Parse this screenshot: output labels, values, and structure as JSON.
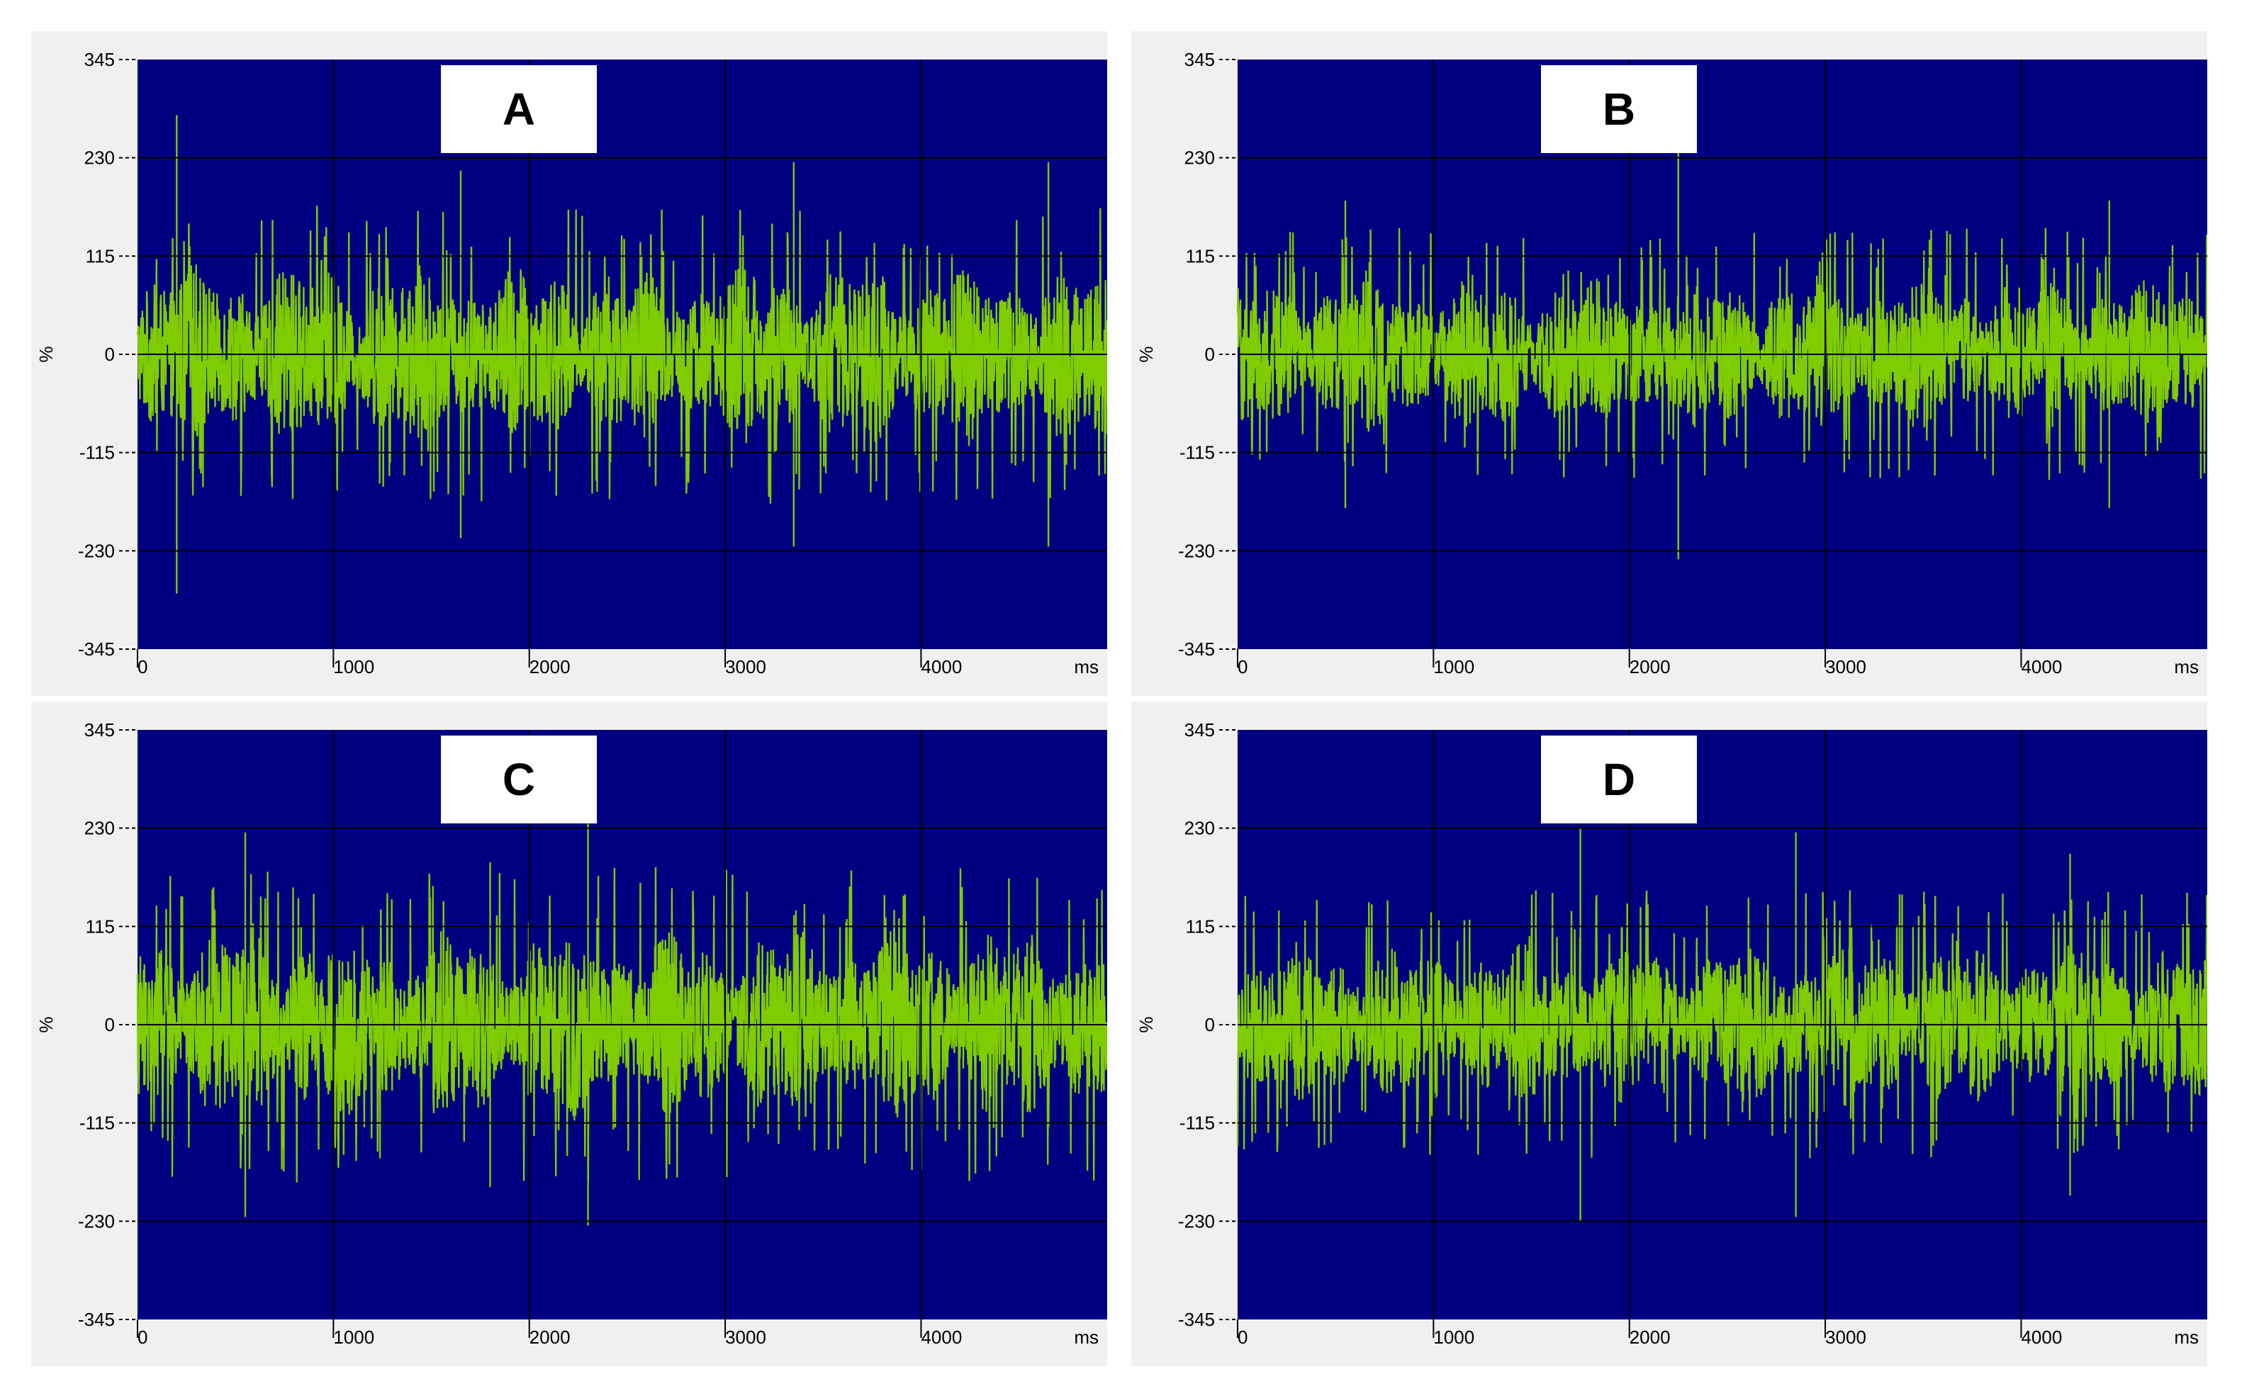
{
  "colors": {
    "plot_background": "#000080",
    "signal": "#7fcc00",
    "grid": "#000000",
    "panel_background": "#f0f0f0",
    "label_box": "#ffffff"
  },
  "chart_data": [
    {
      "type": "line",
      "panel_label": "A",
      "ylabel": "%",
      "xunit": "ms",
      "xlim": [
        0,
        4950
      ],
      "ylim": [
        -345,
        345
      ],
      "xticks": [
        0,
        1000,
        2000,
        3000,
        4000
      ],
      "xtick_labels": [
        "0",
        "1000",
        "2000",
        "3000",
        "4000"
      ],
      "yticks": [
        345,
        230,
        115,
        0,
        -115,
        -230,
        -345
      ],
      "ytick_labels": [
        "345",
        "230",
        "115",
        "0",
        "-115",
        "-230",
        "-345"
      ],
      "grid": true,
      "series": [
        {
          "signal": "noisy oscillation around 0",
          "x_range": [
            0,
            4950
          ],
          "typical_amplitude": 95,
          "approx_extrema": [
            {
              "x": 200,
              "y": 280
            },
            {
              "x": 200,
              "y": -280
            },
            {
              "x": 3350,
              "y": 225
            },
            {
              "x": 3350,
              "y": -225
            },
            {
              "x": 4650,
              "y": 225
            },
            {
              "x": 4650,
              "y": -225
            },
            {
              "x": 1650,
              "y": 215
            },
            {
              "x": 1650,
              "y": -215
            }
          ]
        }
      ]
    },
    {
      "type": "line",
      "panel_label": "B",
      "ylabel": "%",
      "xunit": "ms",
      "xlim": [
        0,
        4950
      ],
      "ylim": [
        -345,
        345
      ],
      "xticks": [
        0,
        1000,
        2000,
        3000,
        4000
      ],
      "xtick_labels": [
        "0",
        "1000",
        "2000",
        "3000",
        "4000"
      ],
      "yticks": [
        345,
        230,
        115,
        0,
        -115,
        -230,
        -345
      ],
      "ytick_labels": [
        "345",
        "230",
        "115",
        "0",
        "-115",
        "-230",
        "-345"
      ],
      "grid": true,
      "series": [
        {
          "signal": "noisy oscillation around 0",
          "x_range": [
            0,
            4950
          ],
          "typical_amplitude": 80,
          "approx_extrema": [
            {
              "x": 2250,
              "y": 240
            },
            {
              "x": 2250,
              "y": -240
            },
            {
              "x": 550,
              "y": 180
            },
            {
              "x": 550,
              "y": -180
            },
            {
              "x": 4450,
              "y": 180
            },
            {
              "x": 4450,
              "y": -180
            }
          ]
        }
      ]
    },
    {
      "type": "line",
      "panel_label": "C",
      "ylabel": "%",
      "xunit": "ms",
      "xlim": [
        0,
        4950
      ],
      "ylim": [
        -345,
        345
      ],
      "xticks": [
        0,
        1000,
        2000,
        3000,
        4000
      ],
      "xtick_labels": [
        "0",
        "1000",
        "2000",
        "3000",
        "4000"
      ],
      "yticks": [
        345,
        230,
        115,
        0,
        -115,
        -230,
        -345
      ],
      "ytick_labels": [
        "345",
        "230",
        "115",
        "0",
        "-115",
        "-230",
        "-345"
      ],
      "grid": true,
      "series": [
        {
          "signal": "noisy oscillation around 0",
          "x_range": [
            0,
            4950
          ],
          "typical_amplitude": 100,
          "approx_extrema": [
            {
              "x": 2300,
              "y": 235
            },
            {
              "x": 2300,
              "y": -235
            },
            {
              "x": 550,
              "y": 225
            },
            {
              "x": 550,
              "y": -225
            },
            {
              "x": 1800,
              "y": 190
            },
            {
              "x": 1800,
              "y": -190
            }
          ]
        }
      ]
    },
    {
      "type": "line",
      "panel_label": "D",
      "ylabel": "%",
      "xunit": "ms",
      "xlim": [
        0,
        4950
      ],
      "ylim": [
        -345,
        345
      ],
      "xticks": [
        0,
        1000,
        2000,
        3000,
        4000
      ],
      "xtick_labels": [
        "0",
        "1000",
        "2000",
        "3000",
        "4000"
      ],
      "yticks": [
        345,
        230,
        115,
        0,
        -115,
        -230,
        -345
      ],
      "ytick_labels": [
        "345",
        "230",
        "115",
        "0",
        "-115",
        "-230",
        "-345"
      ],
      "grid": true,
      "series": [
        {
          "signal": "noisy oscillation around 0",
          "x_range": [
            0,
            4950
          ],
          "typical_amplitude": 85,
          "approx_extrema": [
            {
              "x": 1750,
              "y": 230
            },
            {
              "x": 1750,
              "y": -230
            },
            {
              "x": 2850,
              "y": 225
            },
            {
              "x": 2850,
              "y": -225
            },
            {
              "x": 4250,
              "y": 200
            },
            {
              "x": 4250,
              "y": -200
            }
          ]
        }
      ]
    }
  ]
}
